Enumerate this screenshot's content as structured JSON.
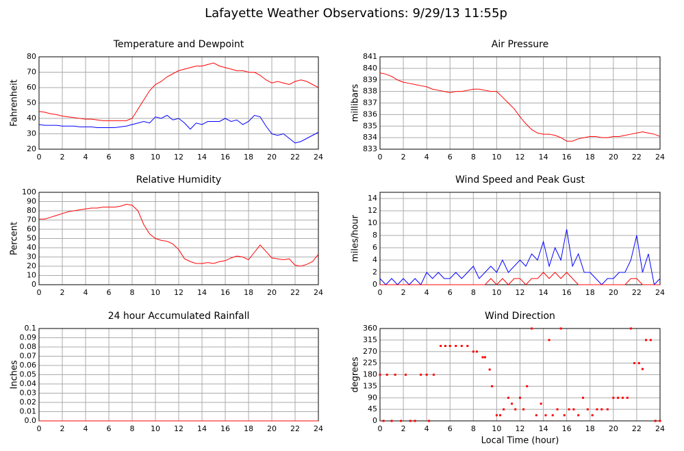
{
  "title": "Lafayette Weather Observations: 9/29/13 11:55p",
  "chart_data": [
    {
      "type": "line",
      "title": "Temperature and Dewpoint",
      "y_label": "Fahrenheit",
      "x": [
        0,
        0.5,
        1,
        1.5,
        2,
        2.5,
        3,
        3.5,
        4,
        4.5,
        5,
        5.5,
        6,
        6.5,
        7,
        7.5,
        8,
        8.5,
        9,
        9.5,
        10,
        10.5,
        11,
        11.5,
        12,
        12.5,
        13,
        13.5,
        14,
        14.5,
        15,
        15.5,
        16,
        16.5,
        17,
        17.5,
        18,
        18.5,
        19,
        19.5,
        20,
        20.5,
        21,
        21.5,
        22,
        22.5,
        23,
        23.5,
        24
      ],
      "series": [
        {
          "color": "#ff0000",
          "values": [
            44.5,
            44,
            43,
            42.5,
            41.5,
            41,
            40.5,
            40,
            39.5,
            39.5,
            39,
            38.5,
            38.5,
            38.5,
            38.5,
            38.5,
            40,
            46,
            52,
            58,
            62,
            64,
            67,
            69,
            71,
            72,
            73,
            74,
            74,
            75,
            76,
            74,
            73,
            72,
            71,
            71,
            70,
            70,
            68,
            65,
            63,
            64,
            63,
            62,
            64,
            65,
            64,
            62,
            60
          ]
        },
        {
          "color": "#0000ff",
          "values": [
            36,
            35.5,
            35.5,
            35.5,
            35,
            35,
            35,
            34.5,
            34.5,
            34.5,
            34,
            34,
            34,
            34,
            34.5,
            35,
            36,
            37,
            38,
            37,
            41,
            40,
            42,
            39,
            40,
            37,
            33,
            37,
            36,
            38,
            38,
            38,
            40,
            38,
            39,
            36,
            38,
            42,
            41,
            35,
            30,
            29,
            30,
            27,
            24,
            25,
            27,
            29,
            31
          ]
        }
      ],
      "xlim": [
        0,
        24
      ],
      "xticks": [
        0,
        2,
        4,
        6,
        8,
        10,
        12,
        14,
        16,
        18,
        20,
        22,
        24
      ],
      "ylim": [
        20,
        80
      ],
      "yticks": [
        20,
        30,
        40,
        50,
        60,
        70,
        80
      ],
      "grid": true
    },
    {
      "type": "line",
      "title": "Air Pressure",
      "y_label": "millibars",
      "x": [
        0,
        0.5,
        1,
        1.5,
        2,
        2.5,
        3,
        3.5,
        4,
        4.5,
        5,
        5.5,
        6,
        6.5,
        7,
        7.5,
        8,
        8.5,
        9,
        9.5,
        10,
        10.5,
        11,
        11.5,
        12,
        12.5,
        13,
        13.5,
        14,
        14.5,
        15,
        15.5,
        16,
        16.5,
        17,
        17.5,
        18,
        18.5,
        19,
        19.5,
        20,
        20.5,
        21,
        21.5,
        22,
        22.5,
        23,
        23.5,
        24
      ],
      "series": [
        {
          "color": "#ff0000",
          "values": [
            839.6,
            839.5,
            839.3,
            839,
            838.8,
            838.7,
            838.6,
            838.5,
            838.4,
            838.2,
            838.1,
            838,
            837.9,
            838,
            838,
            838.1,
            838.2,
            838.2,
            838.1,
            838,
            838,
            837.5,
            837,
            836.5,
            835.8,
            835.2,
            834.7,
            834.4,
            834.3,
            834.3,
            834.2,
            834,
            833.7,
            833.7,
            833.9,
            834,
            834.1,
            834.1,
            834,
            834,
            834.1,
            834.1,
            834.2,
            834.3,
            834.4,
            834.5,
            834.4,
            834.3,
            834.1
          ]
        }
      ],
      "xlim": [
        0,
        24
      ],
      "xticks": [
        0,
        2,
        4,
        6,
        8,
        10,
        12,
        14,
        16,
        18,
        20,
        22,
        24
      ],
      "ylim": [
        833,
        841
      ],
      "yticks": [
        833,
        834,
        835,
        836,
        837,
        838,
        839,
        840,
        841
      ],
      "grid": true
    },
    {
      "type": "line",
      "title": "Relative Humidity",
      "y_label": "Percent",
      "x": [
        0,
        0.5,
        1,
        1.5,
        2,
        2.5,
        3,
        3.5,
        4,
        4.5,
        5,
        5.5,
        6,
        6.5,
        7,
        7.5,
        8,
        8.5,
        9,
        9.5,
        10,
        10.5,
        11,
        11.5,
        12,
        12.5,
        13,
        13.5,
        14,
        14.5,
        15,
        15.5,
        16,
        16.5,
        17,
        17.5,
        18,
        18.5,
        19,
        19.5,
        20,
        20.5,
        21,
        21.5,
        22,
        22.5,
        23,
        23.5,
        24
      ],
      "series": [
        {
          "color": "#ff0000",
          "values": [
            71,
            71,
            73,
            75,
            77,
            79,
            80,
            81,
            82,
            83,
            83,
            84,
            84,
            84,
            85,
            87,
            86,
            80,
            65,
            55,
            50,
            48,
            47,
            44,
            38,
            28,
            25,
            23,
            23,
            24,
            23,
            25,
            26,
            29,
            31,
            30,
            27,
            35,
            43,
            36,
            29,
            28,
            27,
            28,
            21,
            20,
            22,
            25,
            33
          ]
        }
      ],
      "xlim": [
        0,
        24
      ],
      "xticks": [
        0,
        2,
        4,
        6,
        8,
        10,
        12,
        14,
        16,
        18,
        20,
        22,
        24
      ],
      "ylim": [
        0,
        100
      ],
      "yticks": [
        0,
        10,
        20,
        30,
        40,
        50,
        60,
        70,
        80,
        90,
        100
      ],
      "grid": true
    },
    {
      "type": "line",
      "title": "Wind Speed and Peak Gust",
      "y_label": "miles/hour",
      "x": [
        0,
        0.5,
        1,
        1.5,
        2,
        2.5,
        3,
        3.5,
        4,
        4.5,
        5,
        5.5,
        6,
        6.5,
        7,
        7.5,
        8,
        8.5,
        9,
        9.5,
        10,
        10.5,
        11,
        11.5,
        12,
        12.5,
        13,
        13.5,
        14,
        14.5,
        15,
        15.5,
        16,
        16.5,
        17,
        17.5,
        18,
        18.5,
        19,
        19.5,
        20,
        20.5,
        21,
        21.5,
        22,
        22.5,
        23,
        23.5,
        24
      ],
      "series": [
        {
          "color": "#0000ff",
          "values": [
            1,
            0,
            1,
            0,
            1,
            0,
            1,
            0,
            2,
            1,
            2,
            1,
            1,
            2,
            1,
            2,
            3,
            1,
            2,
            3,
            2,
            4,
            2,
            3,
            4,
            3,
            5,
            4,
            7,
            3,
            6,
            4,
            9,
            3,
            5,
            2,
            2,
            1,
            0,
            1,
            1,
            2,
            2,
            4,
            8,
            2,
            5,
            0,
            1
          ]
        },
        {
          "color": "#ff0000",
          "values": [
            0,
            0,
            0,
            0,
            0,
            0,
            0,
            0,
            0,
            0,
            0,
            0,
            0,
            0,
            0,
            0,
            0,
            0,
            0,
            1,
            0,
            1,
            0,
            1,
            1,
            0,
            1,
            1,
            2,
            1,
            2,
            1,
            2,
            1,
            0,
            0,
            0,
            0,
            0,
            0,
            0,
            0,
            0,
            1,
            1,
            0,
            0,
            0,
            0
          ]
        }
      ],
      "xlim": [
        0,
        24
      ],
      "xticks": [
        0,
        2,
        4,
        6,
        8,
        10,
        12,
        14,
        16,
        18,
        20,
        22,
        24
      ],
      "ylim": [
        0,
        15
      ],
      "yticks": [
        0,
        2,
        4,
        6,
        8,
        10,
        12,
        14
      ],
      "grid": true
    },
    {
      "type": "line",
      "title": "24 hour Accumulated Rainfall",
      "y_label": "Inches",
      "x": [
        0,
        24
      ],
      "series": [
        {
          "color": "#ff0000",
          "values": [
            0,
            0
          ]
        }
      ],
      "xlim": [
        0,
        24
      ],
      "xticks": [
        0,
        2,
        4,
        6,
        8,
        10,
        12,
        14,
        16,
        18,
        20,
        22,
        24
      ],
      "ylim": [
        0,
        0.1
      ],
      "yticks": [
        {
          "value": 0,
          "label": "0.0"
        },
        0.01,
        0.02,
        0.03,
        0.04,
        0.05,
        0.06,
        0.07,
        0.08,
        0.09,
        0.1
      ],
      "grid": true
    },
    {
      "type": "scatter",
      "title": "Wind Direction",
      "y_label": "degrees",
      "x_label": "Local Time (hour)",
      "x": [
        0,
        0.3,
        0.6,
        1,
        1.3,
        1.8,
        2.2,
        2.6,
        3,
        3.5,
        4,
        4.2,
        4.6,
        5.2,
        5.6,
        6,
        6.5,
        7,
        7.5,
        8,
        8.3,
        8.8,
        9,
        9.4,
        9.6,
        10,
        10.3,
        10.6,
        11,
        11.3,
        11.6,
        12,
        12.3,
        12.6,
        13,
        13.4,
        13.8,
        14.2,
        14.5,
        14.8,
        15.2,
        15.5,
        15.8,
        16.2,
        16.6,
        17,
        17.4,
        17.8,
        18.2,
        18.6,
        19,
        19.5,
        20,
        20.4,
        20.8,
        21.2,
        21.5,
        21.8,
        22.2,
        22.5,
        22.8,
        23.2,
        23.6,
        24
      ],
      "series": [
        {
          "color": "#ff0000",
          "values": [
            180,
            0,
            180,
            0,
            180,
            0,
            180,
            0,
            0,
            180,
            180,
            0,
            180,
            292,
            292,
            292,
            292,
            292,
            292,
            270,
            270,
            248,
            248,
            200,
            135,
            22,
            22,
            45,
            90,
            67,
            45,
            90,
            45,
            135,
            360,
            22,
            67,
            22,
            315,
            22,
            45,
            360,
            22,
            45,
            45,
            22,
            90,
            45,
            22,
            45,
            45,
            45,
            90,
            90,
            90,
            90,
            360,
            225,
            225,
            202,
            315,
            315,
            0,
            0
          ]
        }
      ],
      "xlim": [
        0,
        24
      ],
      "xticks": [
        0,
        2,
        4,
        6,
        8,
        10,
        12,
        14,
        16,
        18,
        20,
        22,
        24
      ],
      "ylim": [
        0,
        360
      ],
      "yticks": [
        0,
        45,
        90,
        135,
        180,
        225,
        270,
        315,
        360
      ],
      "grid": true
    }
  ]
}
